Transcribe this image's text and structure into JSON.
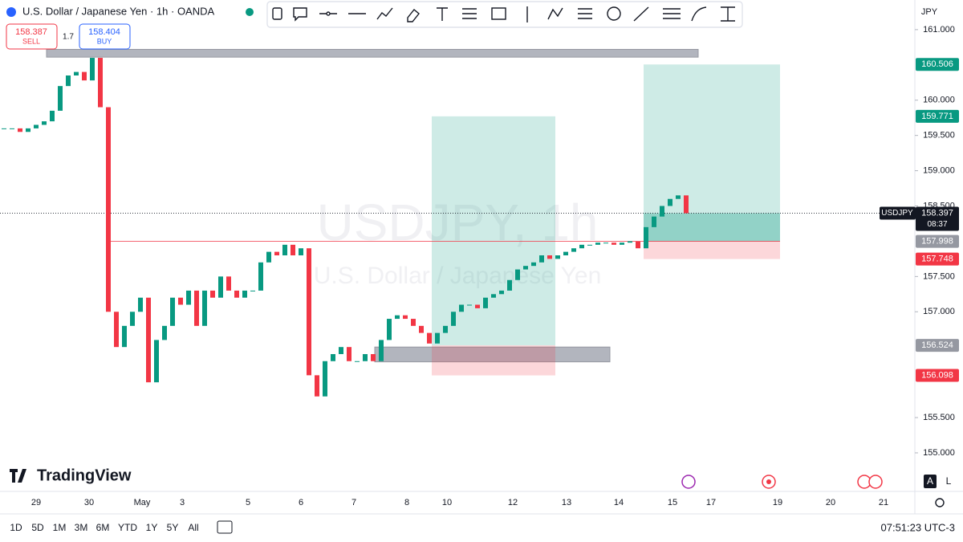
{
  "header": {
    "symbol_title": "U.S. Dollar / Japanese Yen · 1h · OANDA",
    "sell_price": "158.387",
    "sell_label": "SELL",
    "spread": "1.7",
    "buy_price": "158.404",
    "buy_label": "BUY"
  },
  "watermark": {
    "symbol": "USDJPY, 1h",
    "description": "U.S. Dollar / Japanese Yen"
  },
  "logo": "TradingView",
  "currency": "JPY",
  "scale_buttons": [
    "A",
    "L"
  ],
  "ranges": [
    "1D",
    "5D",
    "1M",
    "3M",
    "6M",
    "YTD",
    "1Y",
    "5Y",
    "All"
  ],
  "clock": "07:51:23 UTC-3",
  "chart_data": {
    "type": "candlestick",
    "values": [
      159.6,
      159.6,
      159.55,
      159.6,
      159.65,
      159.7,
      159.85,
      160.2,
      160.35,
      160.4,
      160.28,
      160.6,
      159.9,
      157.0,
      156.5,
      156.8,
      157.0,
      157.2,
      156.0,
      156.6,
      156.8,
      157.2,
      157.1,
      157.3,
      156.8,
      157.3,
      157.2,
      157.5,
      157.3,
      157.2,
      157.3,
      157.3,
      157.7,
      157.85,
      157.8,
      157.95,
      157.8,
      157.9,
      156.1,
      155.8,
      156.3,
      156.4,
      156.5,
      156.3,
      156.3,
      156.4,
      156.3,
      156.6,
      156.9,
      156.95,
      156.9,
      156.8,
      156.7,
      156.55,
      156.7,
      156.8,
      157.0,
      157.1,
      157.1,
      157.05,
      157.2,
      157.25,
      157.3,
      157.45,
      157.6,
      157.65,
      157.7,
      157.8,
      157.75,
      157.8,
      157.85,
      157.9,
      157.95,
      157.95,
      157.98,
      157.98,
      157.95,
      157.98,
      158.0,
      157.9,
      158.2,
      158.35,
      158.5,
      158.6,
      158.65,
      158.397
    ],
    "up_color": "#089981",
    "down_color": "#f23645",
    "ylim": [
      154.476,
      161.42
    ],
    "yticks": [
      {
        "value": 161,
        "label": "161.000"
      },
      {
        "value": 160,
        "label": "160.000"
      },
      {
        "value": 159.5,
        "label": "159.500"
      },
      {
        "value": 159,
        "label": "159.000"
      },
      {
        "value": 158.5,
        "label": "158.500"
      },
      {
        "value": 157.5,
        "label": "157.500"
      },
      {
        "value": 157,
        "label": "157.000"
      },
      {
        "value": 155.5,
        "label": "155.500"
      },
      {
        "value": 155,
        "label": "155.000"
      }
    ],
    "x_labels": [
      "29",
      "30",
      "May",
      "3",
      "5",
      "6",
      "7",
      "8",
      "10",
      "12",
      "13",
      "14",
      "15",
      "17",
      "19",
      "20",
      "21"
    ],
    "current_symbol": "USDJPY",
    "current_price": {
      "value": 158.397,
      "label": "158.397"
    },
    "countdown": "08:37",
    "zones": [
      [
        160.61,
        160.72
      ],
      [
        156.29,
        156.5
      ]
    ],
    "positions": [
      {
        "target": {
          "value": 159.771,
          "label": "159.771"
        },
        "entry": {
          "value": 156.524,
          "label": "156.524"
        },
        "stop": {
          "value": 156.098,
          "label": "156.098"
        }
      },
      {
        "target": {
          "value": 160.506,
          "label": "160.506"
        },
        "entry": {
          "value": 157.998,
          "label": "157.998"
        },
        "stop": {
          "value": 157.748,
          "label": "157.748"
        }
      }
    ]
  }
}
